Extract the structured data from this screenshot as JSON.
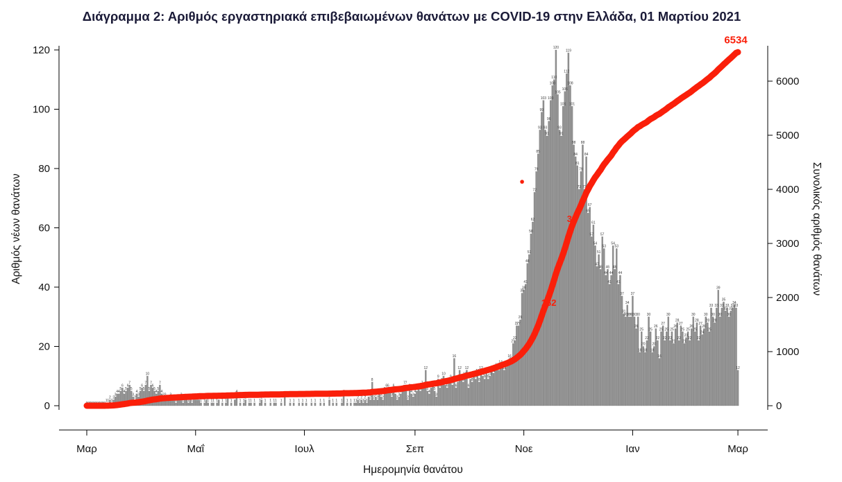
{
  "title": "Διάγραμμα 2: Αριθμός εργαστηριακά επιβεβαιωμένων θανάτων με COVID-19 στην Ελλάδα, 01 Μαρτίου 2021",
  "chart_data": {
    "type": "bar",
    "title": "Διάγραμμα 2: Αριθμός εργαστηριακά επιβεβαιωμένων θανάτων με COVID-19 στην Ελλάδα, 01 Μαρτίου 2021",
    "xlabel": "Ημερομηνία θανάτου",
    "ylabel_left": "Αριθμός νέων θανάτων",
    "ylabel_right": "Συνολικός αριθμός θανάτων",
    "x_tick_labels": [
      "Μαρ",
      "Μαΐ",
      "Ιουλ",
      "Σεπ",
      "Νοε",
      "Ιαν",
      "Μαρ"
    ],
    "x_tick_days": [
      0,
      61,
      122,
      184,
      245,
      306,
      365
    ],
    "y_left_ticks": [
      0,
      20,
      40,
      60,
      80,
      100,
      120
    ],
    "y_left_range": [
      0,
      120
    ],
    "y_right_ticks": [
      0,
      1000,
      2000,
      3000,
      4000,
      5000,
      6000
    ],
    "y_right_range": [
      0,
      6000
    ],
    "grid": false,
    "bar_color": "#8f8f8f",
    "bar_edge_color": "#7a7a7a",
    "line_color": "#fa1f0a",
    "final_total": 6534,
    "final_total_label": "6534",
    "series": [
      {
        "name": "daily_new_deaths",
        "type": "bar"
      },
      {
        "name": "cumulative_deaths",
        "type": "line",
        "end_value": 6534
      }
    ],
    "annotations": [
      {
        "type": "text",
        "text": "162",
        "day": 259,
        "value": 1900
      },
      {
        "type": "text",
        "text": "32",
        "day": 272,
        "value": 3450
      },
      {
        "type": "dot",
        "day": 244,
        "value": 4140
      }
    ],
    "daily_new_deaths": [
      0,
      0,
      0,
      0,
      0,
      0,
      0,
      0,
      0,
      0,
      0,
      1,
      1,
      2,
      1,
      2,
      3,
      4,
      4,
      5,
      6,
      4,
      5,
      6,
      7,
      5,
      3,
      2,
      4,
      3,
      5,
      6,
      5,
      7,
      10,
      5,
      7,
      6,
      5,
      4,
      5,
      7,
      4,
      3,
      3,
      2,
      2,
      3,
      2,
      2,
      1,
      2,
      2,
      3,
      1,
      2,
      2,
      1,
      2,
      1,
      2,
      2,
      2,
      2,
      1,
      0,
      1,
      2,
      1,
      0,
      1,
      1,
      0,
      1,
      2,
      0,
      1,
      0,
      1,
      3,
      0,
      1,
      0,
      2,
      4,
      0,
      1,
      0,
      1,
      2,
      0,
      1,
      1,
      0,
      1,
      0,
      0,
      1,
      2,
      0,
      1,
      0,
      0,
      1,
      0,
      1,
      1,
      0,
      0,
      1,
      0,
      3,
      0,
      0,
      1,
      0,
      1,
      0,
      0,
      1,
      0,
      1,
      0,
      1,
      0,
      0,
      1,
      0,
      1,
      0,
      0,
      1,
      0,
      1,
      0,
      0,
      2,
      0,
      1,
      0,
      1,
      0,
      0,
      1,
      4,
      0,
      1,
      0,
      1,
      0,
      1,
      1,
      2,
      1,
      2,
      1,
      2,
      1,
      3,
      2,
      8,
      2,
      3,
      2,
      4,
      3,
      2,
      5,
      6,
      6,
      5,
      3,
      6,
      4,
      2,
      3,
      4,
      5,
      7,
      7,
      2,
      6,
      4,
      3,
      4,
      5,
      6,
      5,
      7,
      6,
      12,
      5,
      4,
      6,
      7,
      5,
      3,
      9,
      6,
      8,
      10,
      7,
      6,
      8,
      9,
      7,
      16,
      6,
      8,
      12,
      9,
      8,
      10,
      12,
      6,
      9,
      8,
      10,
      9,
      11,
      8,
      12,
      10,
      9,
      11,
      9,
      10,
      12,
      11,
      12,
      13,
      12,
      14,
      13,
      12,
      13,
      14,
      16,
      15,
      21,
      22,
      27,
      27,
      29,
      38,
      39,
      41,
      48,
      51,
      58,
      62,
      72,
      79,
      85,
      93,
      99,
      103,
      93,
      91,
      96,
      103,
      108,
      110,
      120,
      105,
      93,
      91,
      101,
      106,
      112,
      119,
      108,
      101,
      88,
      84,
      81,
      73,
      79,
      88,
      73,
      84,
      65,
      67,
      57,
      61,
      54,
      47,
      51,
      46,
      57,
      53,
      44,
      46,
      41,
      44,
      54,
      46,
      53,
      41,
      44,
      37,
      31,
      30,
      34,
      30,
      30,
      37,
      30,
      26,
      30,
      18,
      25,
      20,
      18,
      22,
      30,
      25,
      18,
      20,
      26,
      22,
      16,
      25,
      27,
      22,
      25,
      30,
      22,
      25,
      21,
      26,
      28,
      22,
      27,
      25,
      21,
      23,
      25,
      22,
      26,
      30,
      25,
      28,
      22,
      27,
      24,
      26,
      30,
      28,
      25,
      33,
      30,
      28,
      33,
      39,
      30,
      33,
      35,
      32,
      33,
      30,
      32,
      33,
      34,
      33,
      12
    ]
  }
}
